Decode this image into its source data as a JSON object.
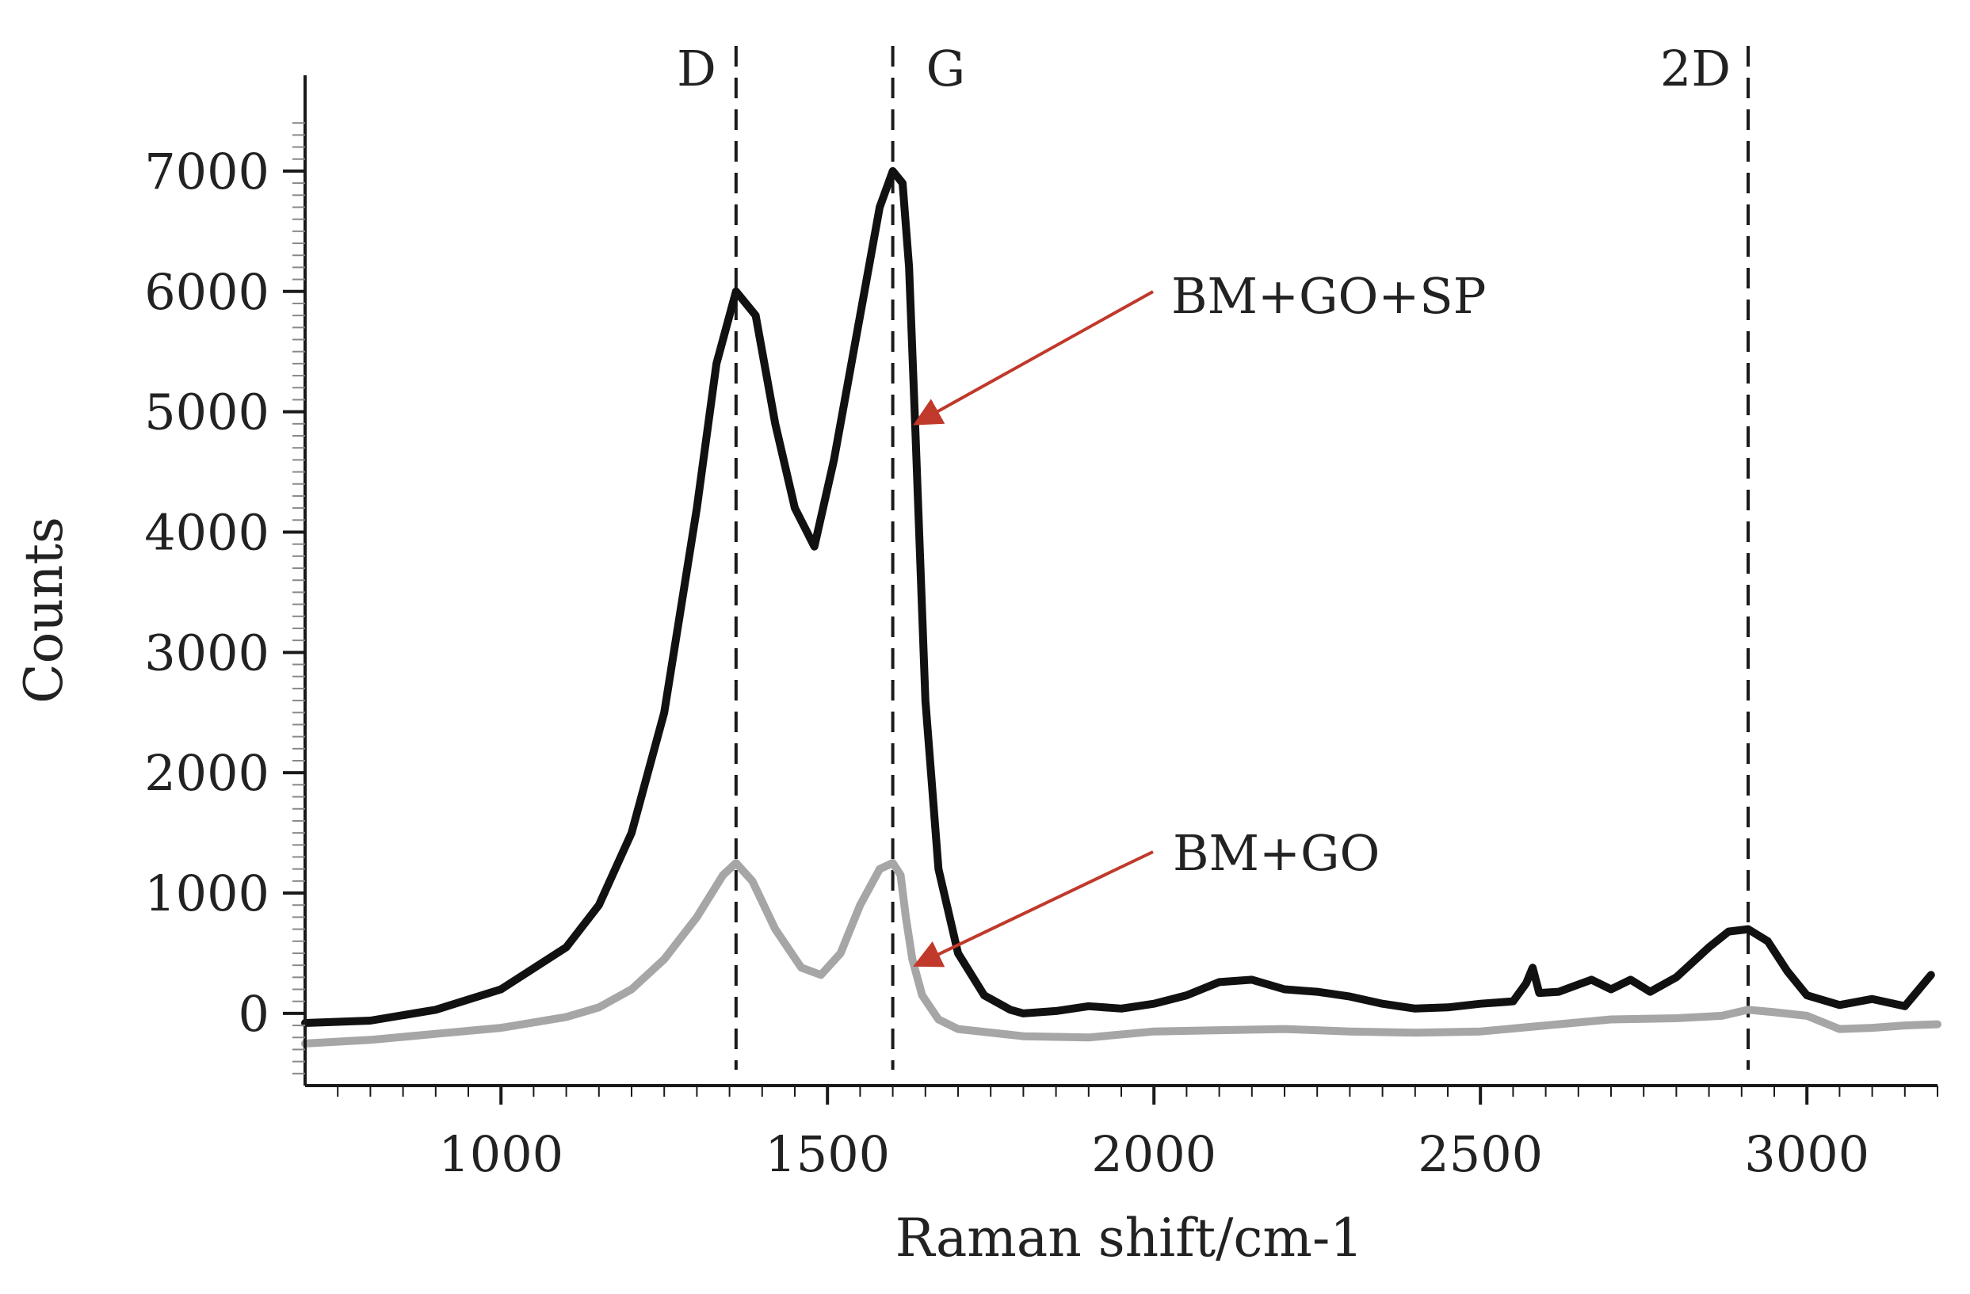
{
  "chart_data": {
    "type": "line",
    "title": "",
    "xlabel": "Raman shift/cm-1",
    "ylabel": "Counts",
    "xlim": [
      700,
      3200
    ],
    "ylim": [
      -600,
      7500
    ],
    "x_ticks": [
      1000,
      1500,
      2000,
      2500,
      3000
    ],
    "y_ticks": [
      0,
      1000,
      2000,
      3000,
      4000,
      5000,
      6000,
      7000
    ],
    "grid": false,
    "peak_markers": [
      {
        "label": "D",
        "x": 1360
      },
      {
        "label": "G",
        "x": 1600
      },
      {
        "label": "2D",
        "x": 2910
      }
    ],
    "series": [
      {
        "name": "BM+GO+SP",
        "color": "#111111",
        "points": [
          [
            700,
            -80
          ],
          [
            800,
            -60
          ],
          [
            900,
            30
          ],
          [
            1000,
            200
          ],
          [
            1100,
            550
          ],
          [
            1150,
            900
          ],
          [
            1200,
            1500
          ],
          [
            1250,
            2500
          ],
          [
            1300,
            4200
          ],
          [
            1330,
            5400
          ],
          [
            1360,
            6000
          ],
          [
            1390,
            5800
          ],
          [
            1420,
            4900
          ],
          [
            1450,
            4200
          ],
          [
            1480,
            3880
          ],
          [
            1510,
            4600
          ],
          [
            1550,
            5800
          ],
          [
            1580,
            6700
          ],
          [
            1600,
            7000
          ],
          [
            1615,
            6900
          ],
          [
            1625,
            6200
          ],
          [
            1635,
            4800
          ],
          [
            1650,
            2600
          ],
          [
            1670,
            1200
          ],
          [
            1700,
            500
          ],
          [
            1740,
            150
          ],
          [
            1780,
            30
          ],
          [
            1800,
            0
          ],
          [
            1850,
            20
          ],
          [
            1900,
            60
          ],
          [
            1950,
            40
          ],
          [
            2000,
            80
          ],
          [
            2050,
            150
          ],
          [
            2100,
            260
          ],
          [
            2150,
            280
          ],
          [
            2200,
            200
          ],
          [
            2250,
            180
          ],
          [
            2300,
            140
          ],
          [
            2350,
            80
          ],
          [
            2400,
            40
          ],
          [
            2450,
            50
          ],
          [
            2500,
            80
          ],
          [
            2550,
            100
          ],
          [
            2570,
            250
          ],
          [
            2580,
            380
          ],
          [
            2590,
            170
          ],
          [
            2620,
            180
          ],
          [
            2650,
            240
          ],
          [
            2670,
            280
          ],
          [
            2700,
            200
          ],
          [
            2730,
            280
          ],
          [
            2760,
            180
          ],
          [
            2800,
            300
          ],
          [
            2850,
            550
          ],
          [
            2880,
            680
          ],
          [
            2910,
            700
          ],
          [
            2940,
            600
          ],
          [
            2970,
            350
          ],
          [
            3000,
            150
          ],
          [
            3050,
            70
          ],
          [
            3100,
            120
          ],
          [
            3150,
            60
          ],
          [
            3190,
            320
          ]
        ]
      },
      {
        "name": "BM+GO",
        "color": "#a6a6a6",
        "points": [
          [
            700,
            -250
          ],
          [
            800,
            -220
          ],
          [
            900,
            -170
          ],
          [
            1000,
            -120
          ],
          [
            1100,
            -30
          ],
          [
            1150,
            50
          ],
          [
            1200,
            200
          ],
          [
            1250,
            450
          ],
          [
            1300,
            800
          ],
          [
            1340,
            1150
          ],
          [
            1360,
            1250
          ],
          [
            1385,
            1100
          ],
          [
            1420,
            700
          ],
          [
            1460,
            380
          ],
          [
            1490,
            320
          ],
          [
            1520,
            500
          ],
          [
            1550,
            900
          ],
          [
            1580,
            1200
          ],
          [
            1600,
            1250
          ],
          [
            1612,
            1150
          ],
          [
            1620,
            800
          ],
          [
            1630,
            450
          ],
          [
            1645,
            150
          ],
          [
            1670,
            -50
          ],
          [
            1700,
            -130
          ],
          [
            1800,
            -190
          ],
          [
            1900,
            -200
          ],
          [
            2000,
            -150
          ],
          [
            2100,
            -140
          ],
          [
            2200,
            -130
          ],
          [
            2300,
            -150
          ],
          [
            2400,
            -160
          ],
          [
            2500,
            -150
          ],
          [
            2600,
            -100
          ],
          [
            2700,
            -50
          ],
          [
            2800,
            -40
          ],
          [
            2870,
            -20
          ],
          [
            2910,
            30
          ],
          [
            2950,
            10
          ],
          [
            3000,
            -20
          ],
          [
            3050,
            -130
          ],
          [
            3100,
            -120
          ],
          [
            3150,
            -100
          ],
          [
            3200,
            -90
          ]
        ]
      }
    ],
    "annotations": [
      {
        "text": "BM+GO+SP",
        "arrow_to": [
          1630,
          4900
        ]
      },
      {
        "text": "BM+GO",
        "arrow_to": [
          1630,
          400
        ]
      }
    ],
    "annotation_color": "#c0392b",
    "axis_color": "#1a1a1a",
    "marker_line_color": "#1a1a1a"
  }
}
